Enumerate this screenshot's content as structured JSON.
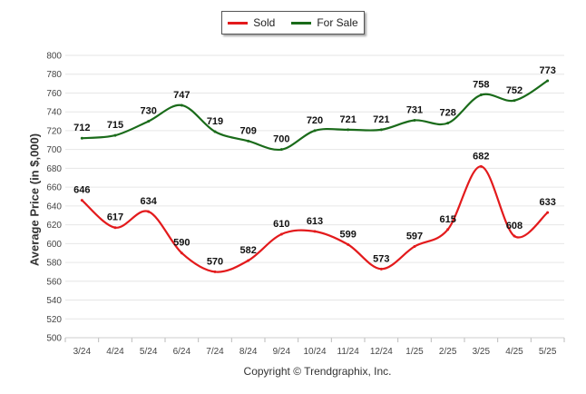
{
  "chart_data": {
    "type": "line",
    "title": "",
    "ylabel": "Average Price (in $,000)",
    "xlabel": "",
    "ylim": [
      500,
      800
    ],
    "yticks": [
      500,
      520,
      540,
      560,
      580,
      600,
      620,
      640,
      660,
      680,
      700,
      720,
      740,
      760,
      780,
      800
    ],
    "grid": true,
    "legend_position": "top-center",
    "categories": [
      "3/24",
      "4/24",
      "5/24",
      "6/24",
      "7/24",
      "8/24",
      "9/24",
      "10/24",
      "11/24",
      "12/24",
      "1/25",
      "2/25",
      "3/25",
      "4/25",
      "5/25"
    ],
    "series": [
      {
        "name": "Sold",
        "color": "#e31a1c",
        "values": [
          646,
          617,
          634,
          590,
          570,
          582,
          610,
          613,
          599,
          573,
          597,
          615,
          682,
          608,
          633
        ]
      },
      {
        "name": "For Sale",
        "color": "#1a6b1a",
        "values": [
          712,
          715,
          730,
          747,
          719,
          709,
          700,
          720,
          721,
          721,
          731,
          728,
          758,
          752,
          773
        ]
      }
    ]
  },
  "footer": {
    "copyright": "Copyright © Trendgraphix, Inc."
  }
}
